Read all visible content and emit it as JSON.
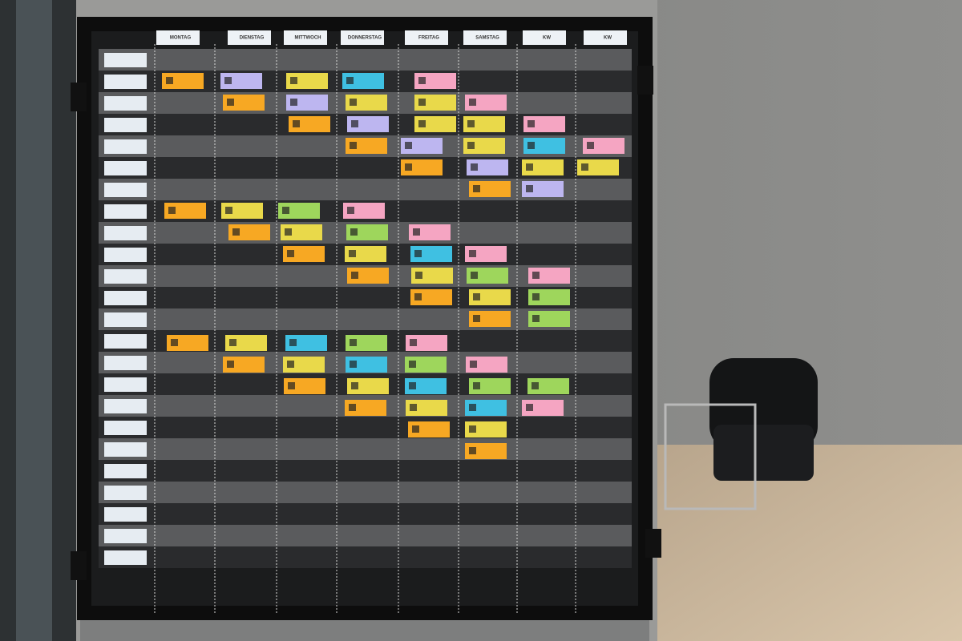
{
  "header": {
    "columns": [
      "MONTAG",
      "DIENSTAG",
      "MITTWOCH",
      "DONNERSTAG",
      "FREITAG",
      "SAMSTAG",
      "KW",
      "KW"
    ]
  }
}
